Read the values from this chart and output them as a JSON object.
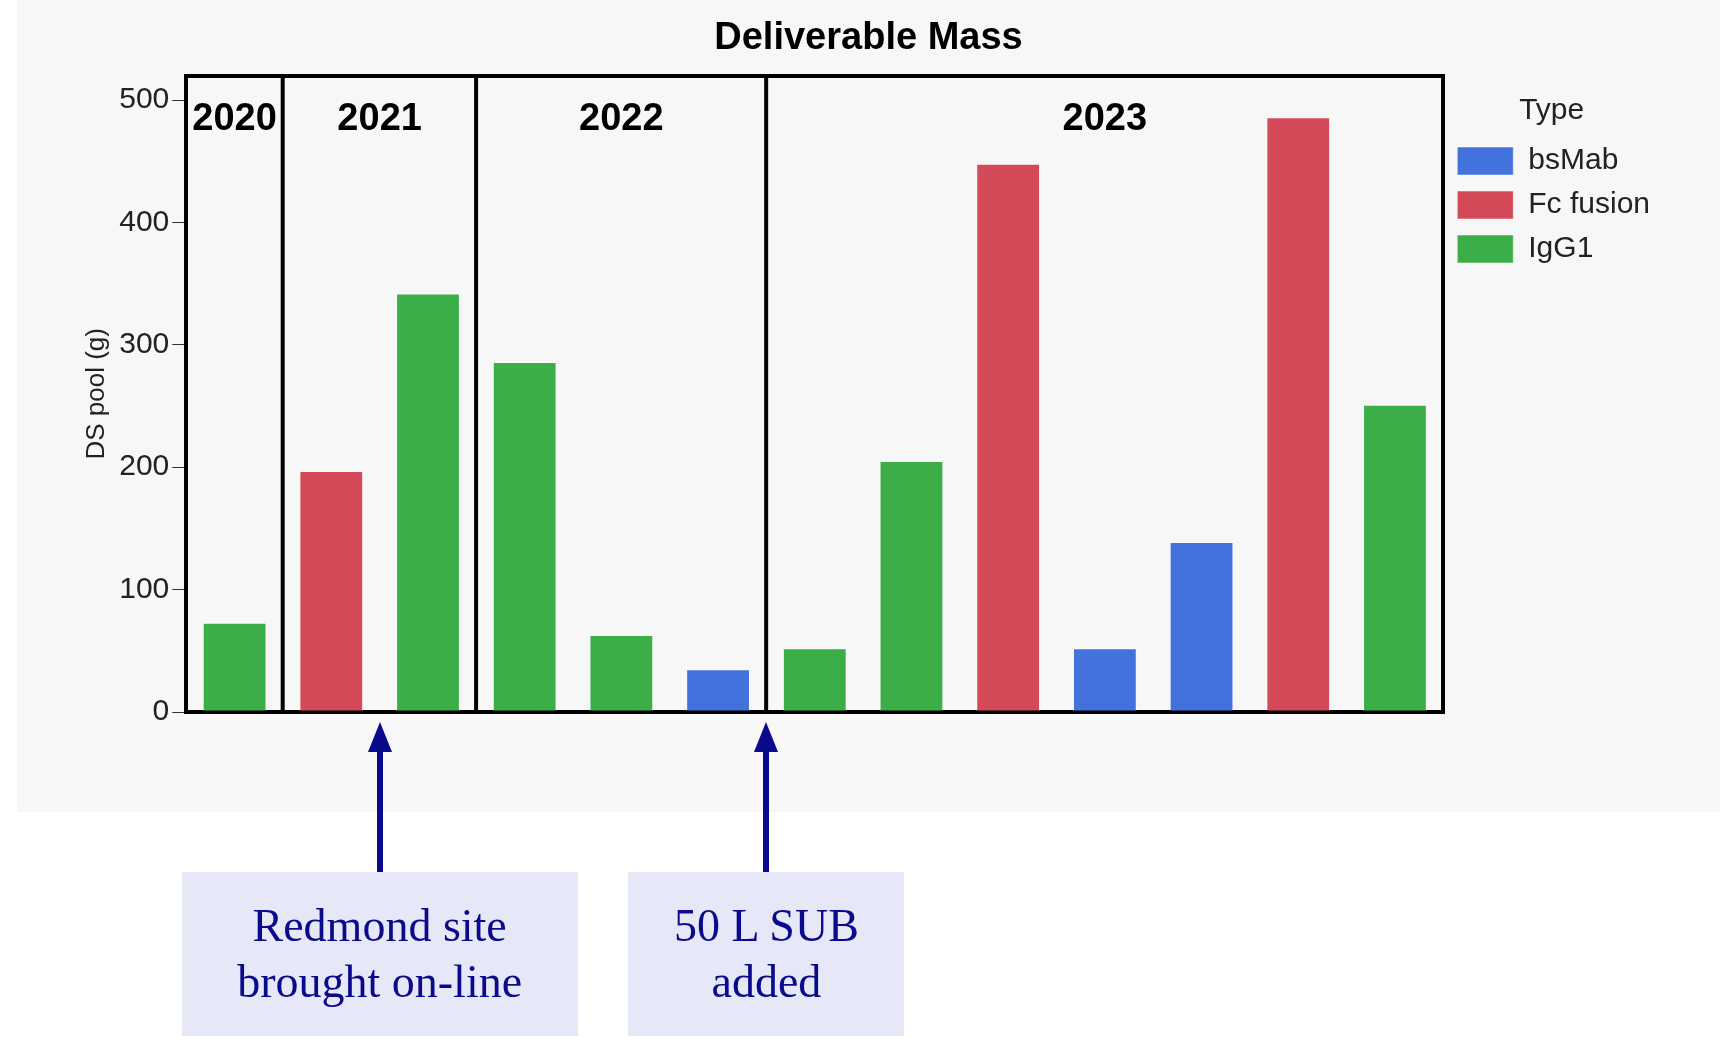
{
  "chart_data": {
    "type": "bar",
    "title": "Deliverable Mass",
    "ylabel": "DS pool (g)",
    "legend_title": "Type",
    "categories": [
      null,
      null,
      null,
      null,
      null,
      null,
      null,
      null,
      null,
      null,
      null,
      null,
      null
    ],
    "stacked": true,
    "series": [
      {
        "name": "bsMab",
        "color": "#4472dc",
        "values": [
          null,
          null,
          null,
          null,
          null,
          35,
          null,
          null,
          null,
          52,
          139,
          null,
          null
        ]
      },
      {
        "name": "Fc fusion",
        "color": "#d44a58",
        "values": [
          null,
          197,
          null,
          null,
          null,
          null,
          null,
          null,
          448,
          null,
          null,
          486,
          null
        ]
      },
      {
        "name": "IgG1",
        "color": "#3cae48",
        "values": [
          73,
          null,
          342,
          286,
          63,
          null,
          52,
          205,
          null,
          null,
          null,
          null,
          251
        ]
      }
    ],
    "ylim": [
      0,
      520
    ],
    "yticks": [
      0,
      100,
      200,
      300,
      400,
      500
    ],
    "grid": false,
    "legend": "right",
    "tick_labels": "y",
    "annotations": [
      "2020",
      "2021",
      "2022",
      "2023",
      "Redmond site brought on-line",
      "50 L SUB added"
    ]
  }
}
